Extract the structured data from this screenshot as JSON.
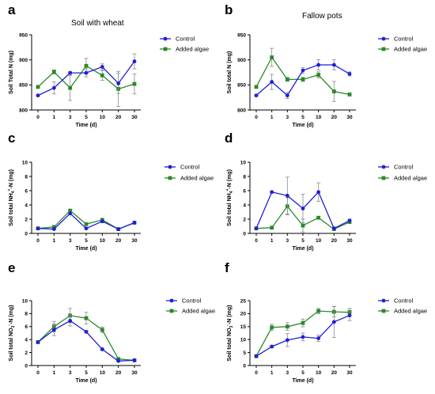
{
  "colors": {
    "control": "#1f1fd6",
    "added_algae": "#2a8a2a",
    "error_bar": "#8a8a8a",
    "axis": "#000000"
  },
  "chart_data": [
    {
      "panel": "a",
      "title": "Soil with wheat",
      "type": "line",
      "categories": [
        "0",
        "1",
        "3",
        "5",
        "10",
        "20",
        "30"
      ],
      "xlabel": "Time (d)",
      "ylabel": "Soil Total N (mg)",
      "ylim": [
        800,
        950
      ],
      "yticks": [
        "800",
        "850",
        "900",
        "950"
      ],
      "series": [
        {
          "name": "Control",
          "marker": "circle",
          "values": [
            829,
            844,
            874,
            874,
            886,
            853,
            897
          ],
          "errors": [
            2,
            12,
            3,
            8,
            6,
            20,
            15
          ]
        },
        {
          "name": "Added algae",
          "marker": "square",
          "values": [
            846,
            876,
            844,
            888,
            869,
            842,
            852
          ],
          "errors": [
            2,
            4,
            25,
            15,
            10,
            35,
            20
          ]
        }
      ]
    },
    {
      "panel": "b",
      "title": "Fallow pots",
      "type": "line",
      "categories": [
        "0",
        "1",
        "3",
        "5",
        "10",
        "20",
        "30"
      ],
      "xlabel": "Time (d)",
      "ylabel": "Soil total N (mg)",
      "ylim": [
        800,
        950
      ],
      "yticks": [
        "800",
        "850",
        "900",
        "950"
      ],
      "series": [
        {
          "name": "Control",
          "marker": "circle",
          "values": [
            829,
            856,
            829,
            879,
            890,
            890,
            872
          ],
          "errors": [
            2,
            15,
            6,
            6,
            10,
            10,
            4
          ]
        },
        {
          "name": "Added algae",
          "marker": "square",
          "values": [
            846,
            905,
            861,
            861,
            870,
            837,
            831
          ],
          "errors": [
            2,
            18,
            4,
            4,
            6,
            20,
            3
          ]
        }
      ]
    },
    {
      "panel": "c",
      "title": "",
      "type": "line",
      "categories": [
        "0",
        "1",
        "3",
        "5",
        "10",
        "20",
        "30"
      ],
      "xlabel": "Time (d)",
      "ylabel_pre": "Soil total NH",
      "ylabel_sub": "4",
      "ylabel_sup": "+",
      "ylabel_post": "-N (mg)",
      "ylim": [
        0,
        10
      ],
      "yticks": [
        "0",
        "2",
        "4",
        "6",
        "8",
        "10"
      ],
      "series": [
        {
          "name": "Control",
          "marker": "circle",
          "values": [
            0.7,
            0.6,
            2.8,
            0.7,
            1.7,
            0.6,
            1.5
          ],
          "errors": [
            0.1,
            0.1,
            0.2,
            0.1,
            0.2,
            0.1,
            0.1
          ]
        },
        {
          "name": "Added algae",
          "marker": "square",
          "values": [
            0.7,
            0.9,
            3.2,
            1.3,
            1.9,
            0.6,
            1.5
          ],
          "errors": [
            0.1,
            0.1,
            0.2,
            0.2,
            0.2,
            0.1,
            0.1
          ]
        }
      ]
    },
    {
      "panel": "d",
      "title": "",
      "type": "line",
      "categories": [
        "0",
        "1",
        "3",
        "5",
        "10",
        "20",
        "30"
      ],
      "xlabel": "Time (d)",
      "ylabel_pre": "Soil total NH",
      "ylabel_sub": "4",
      "ylabel_sup": "+",
      "ylabel_post": "-N (mg)",
      "ylim": [
        0,
        10
      ],
      "yticks": [
        "0",
        "2",
        "4",
        "6",
        "8",
        "10"
      ],
      "series": [
        {
          "name": "Control",
          "marker": "circle",
          "values": [
            0.7,
            5.8,
            5.3,
            3.5,
            5.8,
            0.7,
            1.8
          ],
          "errors": [
            0.1,
            0.1,
            2.6,
            2.0,
            1.3,
            0.2,
            0.2
          ]
        },
        {
          "name": "Added algae",
          "marker": "square",
          "values": [
            0.7,
            0.8,
            3.8,
            1.1,
            2.2,
            0.6,
            1.6
          ],
          "errors": [
            0.1,
            0.1,
            1.2,
            0.9,
            0.2,
            0.1,
            0.1
          ]
        }
      ]
    },
    {
      "panel": "e",
      "title": "",
      "type": "line",
      "categories": [
        "0",
        "1",
        "3",
        "5",
        "10",
        "20",
        "30"
      ],
      "xlabel": "Time (d)",
      "ylabel_pre": "Soil total NO",
      "ylabel_sub": "3",
      "ylabel_sup": "-",
      "ylabel_post": "-N (mg)",
      "ylim": [
        0,
        10
      ],
      "yticks": [
        "0",
        "2",
        "4",
        "6",
        "8",
        "10"
      ],
      "series": [
        {
          "name": "Control",
          "marker": "circle",
          "values": [
            3.6,
            5.5,
            6.9,
            5.2,
            2.5,
            0.7,
            0.8
          ],
          "errors": [
            0.1,
            0.9,
            0.8,
            0.2,
            0.2,
            0.1,
            0.1
          ]
        },
        {
          "name": "Added algae",
          "marker": "square",
          "values": [
            3.6,
            6.0,
            7.7,
            7.3,
            5.5,
            1.0,
            0.8
          ],
          "errors": [
            0.1,
            0.8,
            1.1,
            0.9,
            0.4,
            0.1,
            0.1
          ]
        }
      ]
    },
    {
      "panel": "f",
      "title": "",
      "type": "line",
      "categories": [
        "0",
        "1",
        "3",
        "5",
        "10",
        "20",
        "30"
      ],
      "xlabel": "Time (d)",
      "ylabel_pre": "Soil total NO",
      "ylabel_sub": "3",
      "ylabel_sup": "-",
      "ylabel_post": "-N (mg)",
      "ylim": [
        0,
        25
      ],
      "yticks": [
        "0",
        "5",
        "10",
        "15",
        "20",
        "25"
      ],
      "series": [
        {
          "name": "Control",
          "marker": "circle",
          "values": [
            3.6,
            7.3,
            9.8,
            11.0,
            10.5,
            16.8,
            19.3
          ],
          "errors": [
            0.2,
            0.5,
            2.5,
            1.5,
            1.2,
            6.0,
            2.0
          ]
        },
        {
          "name": "Added algae",
          "marker": "square",
          "values": [
            3.6,
            14.7,
            15.0,
            16.4,
            21.0,
            20.7,
            20.5
          ],
          "errors": [
            0.2,
            1.2,
            1.5,
            1.5,
            1.0,
            2.0,
            1.5
          ]
        }
      ]
    }
  ]
}
